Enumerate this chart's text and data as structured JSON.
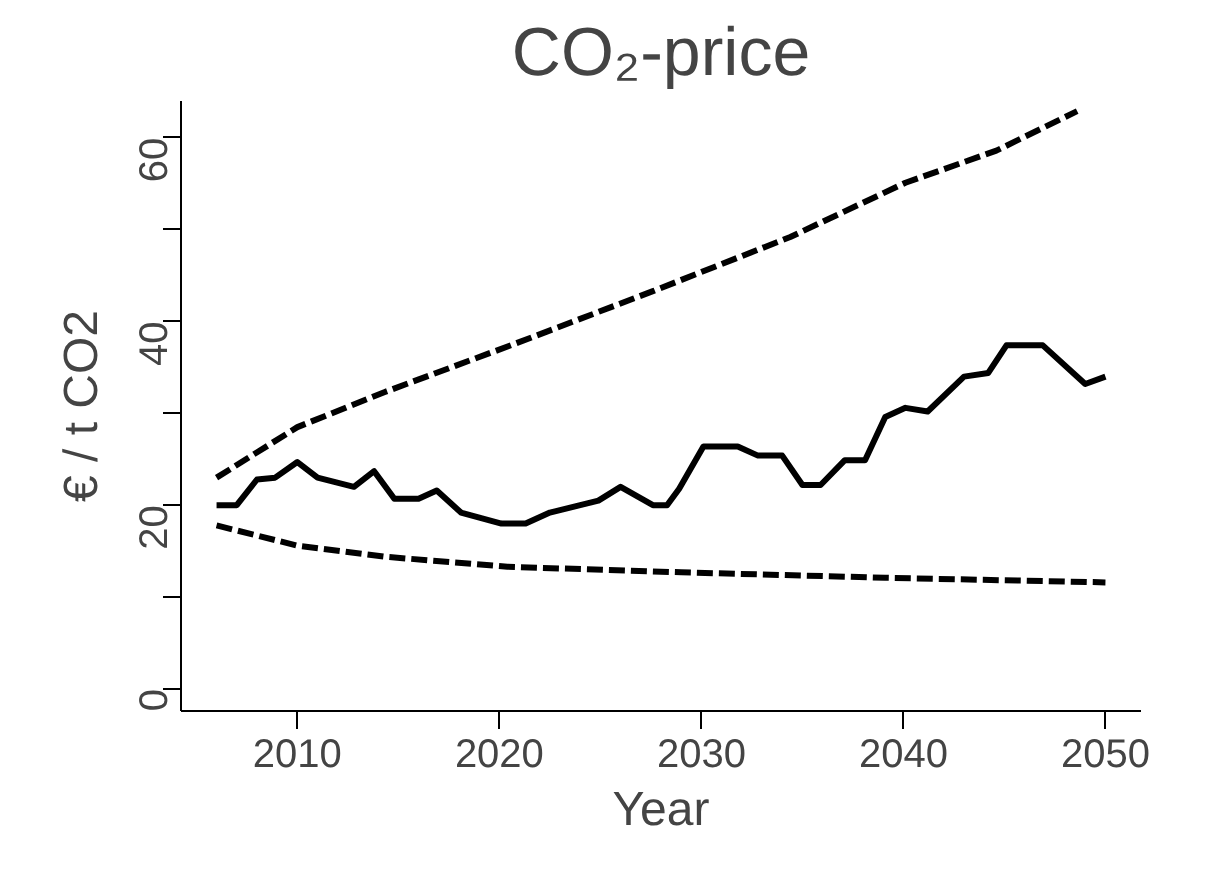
{
  "chart_data": {
    "type": "line",
    "title": "CO₂-price",
    "xlabel": "Year",
    "ylabel": "€ / t CO2",
    "xlim": [
      2004.24,
      2051.76
    ],
    "xticks": [
      2010,
      2020,
      2030,
      2040,
      2050
    ],
    "ylim": [
      -2.4,
      64
    ],
    "yticks": [
      0,
      {
        "value": 10,
        "label": null
      },
      20,
      {
        "value": 30,
        "label": null
      },
      40,
      {
        "value": 50,
        "label": null
      },
      60
    ],
    "grid": false,
    "marker": "none",
    "series": [
      {
        "color": "#000000",
        "line_style": "solid",
        "x": [
          2006,
          2007,
          2008,
          2008.9,
          2010,
          2011,
          2012.8,
          2013.8,
          2014.8,
          2016,
          2016.9,
          2018.1,
          2020.1,
          2021.3,
          2022.5,
          2024.9,
          2026,
          2027.6,
          2028.3,
          2028.9,
          2030.1,
          2031.8,
          2032.8,
          2034,
          2035,
          2035.9,
          2037.1,
          2038.1,
          2039.1,
          2040.1,
          2041.2,
          2043,
          2044.2,
          2045.1,
          2046.9,
          2049,
          2050
        ],
        "values": [
          20,
          20,
          22.8,
          23,
          24.7,
          23,
          22,
          23.7,
          20.7,
          20.7,
          21.6,
          19.2,
          18,
          18,
          19.2,
          20.5,
          22,
          20,
          20,
          21.8,
          26.4,
          26.4,
          25.4,
          25.4,
          22.2,
          22.2,
          24.9,
          24.9,
          29.6,
          30.6,
          30.2,
          34,
          34.4,
          37.4,
          37.4,
          33.2,
          34
        ]
      },
      {
        "color": "#000000",
        "line_style": "dashed",
        "x": [
          2006,
          2010,
          2014.3,
          2020.8,
          2027.6,
          2034.4,
          2040.1,
          2044.6,
          2048.6
        ],
        "values": [
          23,
          28.5,
          32.3,
          37.6,
          43.3,
          49.2,
          55.1,
          58.6,
          62.9
        ]
      },
      {
        "color": "#000000",
        "line_style": "dashed",
        "x": [
          2006,
          2010,
          2014.3,
          2020.4,
          2029,
          2039.1,
          2050
        ],
        "values": [
          17.8,
          15.6,
          14.4,
          13.3,
          12.7,
          12.1,
          11.6
        ]
      }
    ]
  }
}
